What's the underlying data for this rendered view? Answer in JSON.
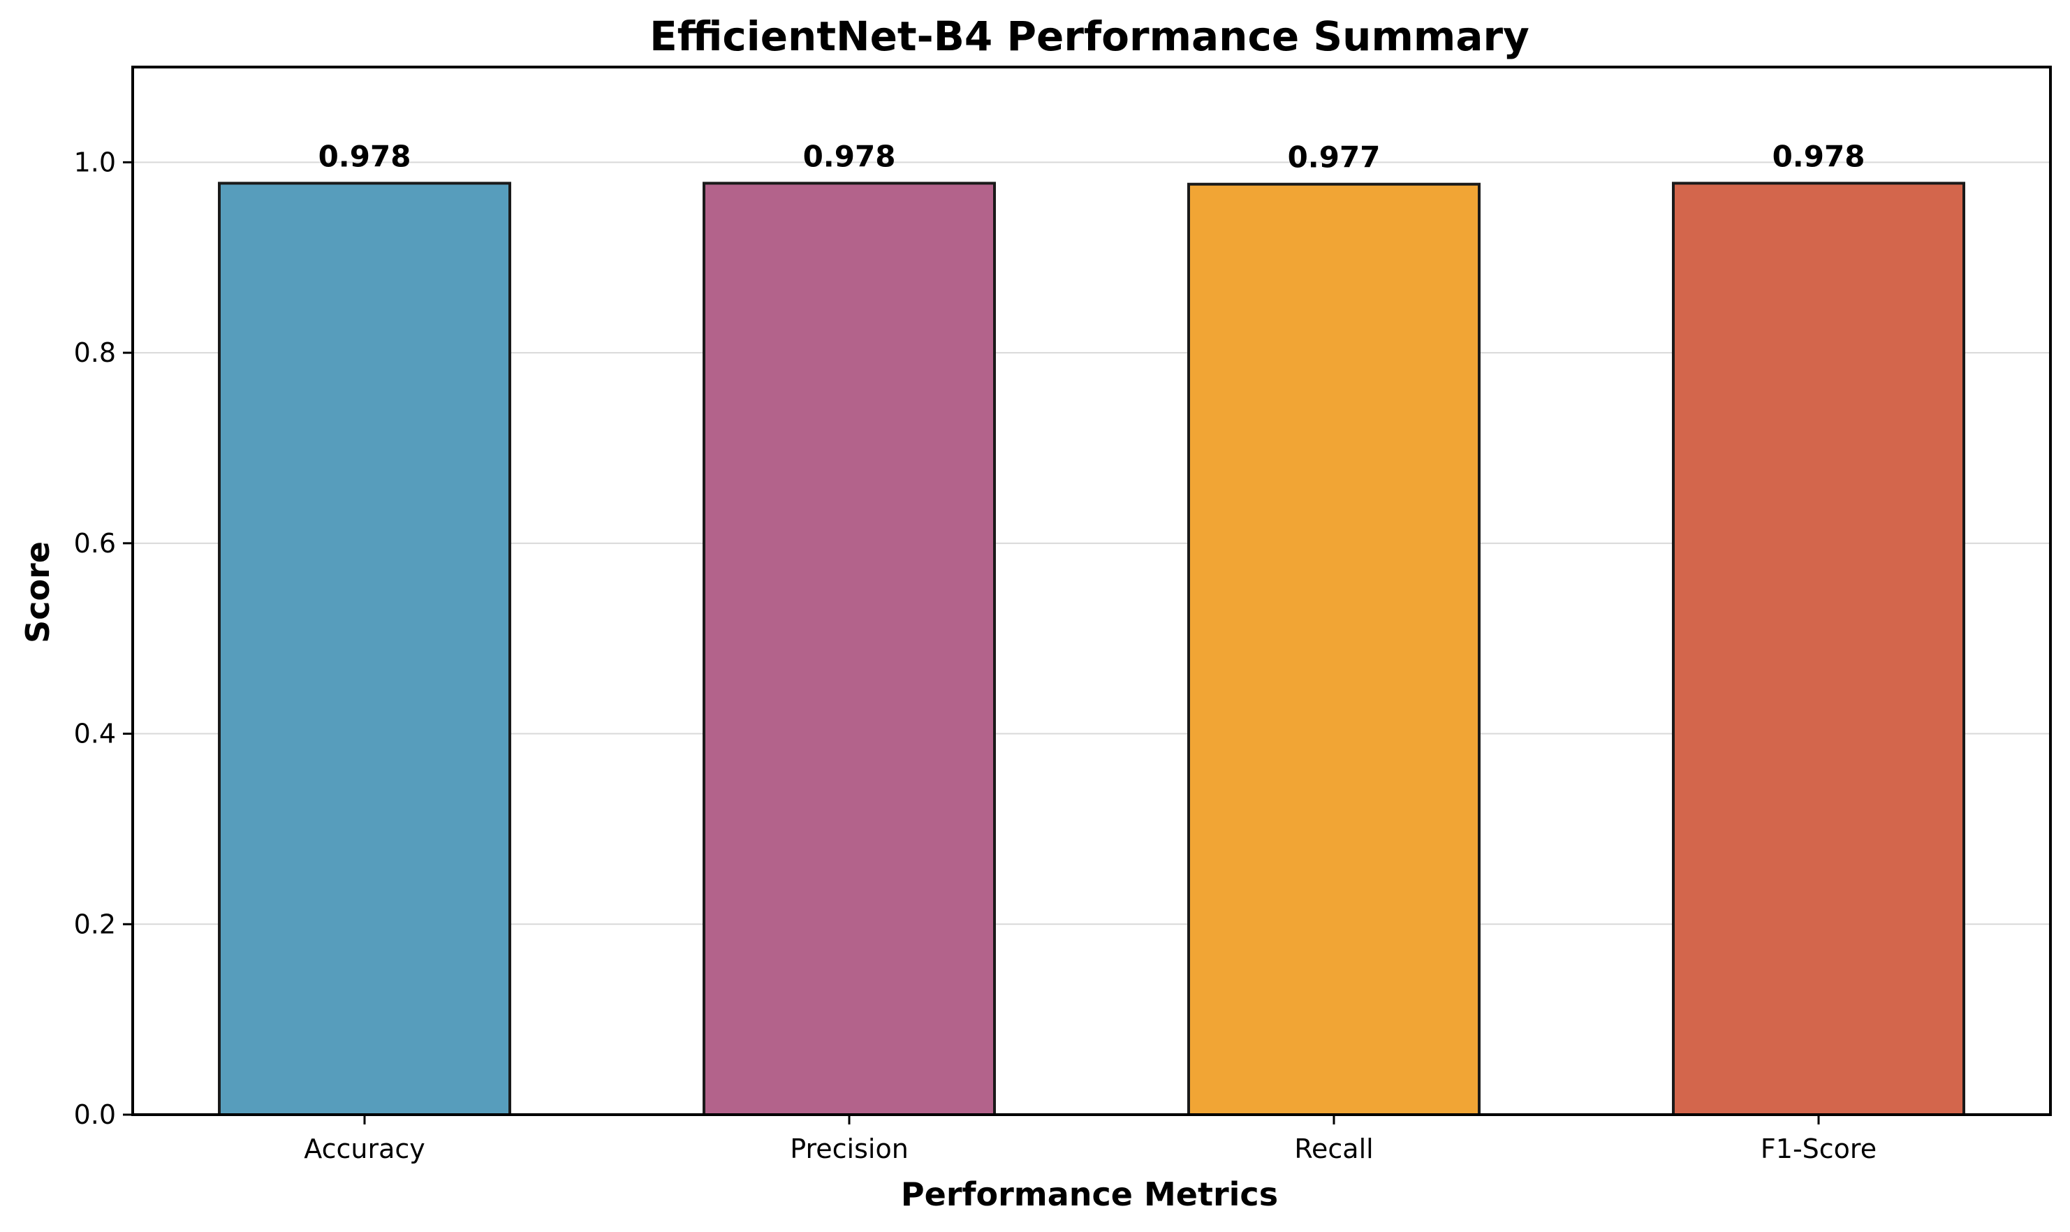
{
  "chart_data": {
    "type": "bar",
    "title": "EfficientNet-B4 Performance Summary",
    "xlabel": "Performance Metrics",
    "ylabel": "Score",
    "categories": [
      "Accuracy",
      "Precision",
      "Recall",
      "F1-Score"
    ],
    "values": [
      0.978,
      0.978,
      0.977,
      0.978
    ],
    "value_labels": [
      "0.978",
      "0.978",
      "0.977",
      "0.978"
    ],
    "bar_colors": [
      "#579dbc",
      "#b3638b",
      "#f1a535",
      "#d3664c"
    ],
    "ylim": [
      0,
      1.1
    ],
    "yticks": [
      0.0,
      0.2,
      0.4,
      0.6,
      0.8,
      1.0
    ],
    "ytick_labels": [
      "0.0",
      "0.2",
      "0.4",
      "0.6",
      "0.8",
      "1.0"
    ],
    "grid": "y",
    "legend": "none"
  }
}
